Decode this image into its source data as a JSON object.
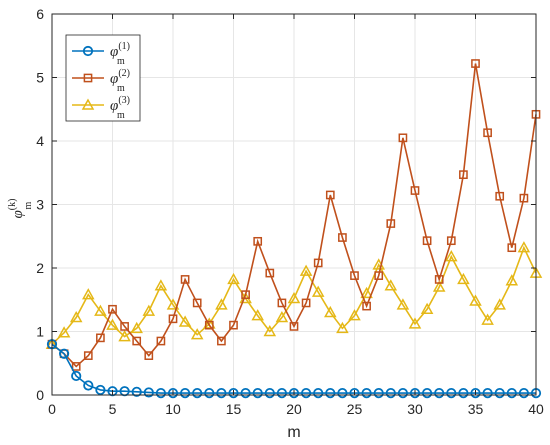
{
  "chart_data": {
    "type": "line",
    "xlabel": "m",
    "ylabel": {
      "base": "φ",
      "sub": "m",
      "sup": "(k)"
    },
    "xlim": [
      0,
      40
    ],
    "ylim": [
      0,
      6
    ],
    "xticks": [
      0,
      5,
      10,
      15,
      20,
      25,
      30,
      35,
      40
    ],
    "yticks": [
      0,
      1,
      2,
      3,
      4,
      5,
      6
    ],
    "grid": true,
    "legend_position": "top-left",
    "x": [
      0,
      1,
      2,
      3,
      4,
      5,
      6,
      7,
      8,
      9,
      10,
      11,
      12,
      13,
      14,
      15,
      16,
      17,
      18,
      19,
      20,
      21,
      22,
      23,
      24,
      25,
      26,
      27,
      28,
      29,
      30,
      31,
      32,
      33,
      34,
      35,
      36,
      37,
      38,
      39,
      40
    ],
    "series": [
      {
        "name": {
          "base": "φ",
          "sub": "m",
          "sup": "(1)"
        },
        "color": "#0072BD",
        "marker": "circle",
        "values": [
          0.8,
          0.65,
          0.3,
          0.15,
          0.08,
          0.06,
          0.06,
          0.05,
          0.04,
          0.03,
          0.03,
          0.03,
          0.03,
          0.03,
          0.03,
          0.03,
          0.03,
          0.03,
          0.03,
          0.03,
          0.03,
          0.03,
          0.03,
          0.03,
          0.03,
          0.03,
          0.03,
          0.03,
          0.03,
          0.03,
          0.03,
          0.03,
          0.03,
          0.03,
          0.03,
          0.03,
          0.03,
          0.03,
          0.03,
          0.03,
          0.03
        ]
      },
      {
        "name": {
          "base": "φ",
          "sub": "m",
          "sup": "(2)"
        },
        "color": "#C0501C",
        "marker": "square",
        "values": [
          0.8,
          0.65,
          0.45,
          0.62,
          0.9,
          1.35,
          1.08,
          0.85,
          0.62,
          0.85,
          1.2,
          1.82,
          1.45,
          1.1,
          0.85,
          1.1,
          1.58,
          2.42,
          1.92,
          1.45,
          1.08,
          1.45,
          2.08,
          3.15,
          2.48,
          1.88,
          1.4,
          1.88,
          2.7,
          4.05,
          3.22,
          2.43,
          1.82,
          2.43,
          3.47,
          5.22,
          4.13,
          3.13,
          2.32,
          3.1,
          4.42
        ]
      },
      {
        "name": {
          "base": "φ",
          "sub": "m",
          "sup": "(3)"
        },
        "color": "#E5B817",
        "marker": "triangle",
        "values": [
          0.8,
          0.98,
          1.22,
          1.58,
          1.32,
          1.1,
          0.92,
          1.05,
          1.32,
          1.72,
          1.42,
          1.15,
          0.95,
          1.12,
          1.42,
          1.82,
          1.52,
          1.25,
          1.0,
          1.22,
          1.52,
          1.95,
          1.62,
          1.3,
          1.05,
          1.25,
          1.6,
          2.05,
          1.72,
          1.42,
          1.12,
          1.35,
          1.7,
          2.18,
          1.82,
          1.48,
          1.18,
          1.42,
          1.8,
          2.32,
          1.92
        ]
      }
    ]
  }
}
